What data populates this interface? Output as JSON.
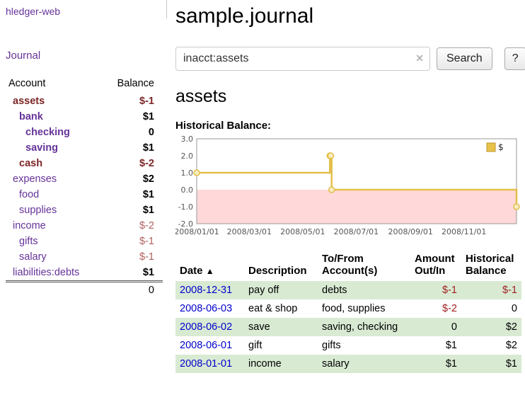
{
  "sidebar": {
    "app_title": "hledger-web",
    "nav": {
      "journal": "Journal"
    },
    "table": {
      "account_header": "Account",
      "balance_header": "Balance"
    },
    "accounts": [
      {
        "name": "assets",
        "depth": 1,
        "bold": true,
        "name_color": "#7d2626",
        "balance": "$-1",
        "balance_color": "#7d2626",
        "balance_bold": true
      },
      {
        "name": "bank",
        "depth": 2,
        "bold": true,
        "name_color": "#663399",
        "balance": "$1",
        "balance_color": "#000000",
        "balance_bold": true
      },
      {
        "name": "checking",
        "depth": 3,
        "bold": true,
        "name_color": "#663399",
        "balance": "0",
        "balance_color": "#000000",
        "balance_bold": true
      },
      {
        "name": "saving",
        "depth": 3,
        "bold": true,
        "name_color": "#663399",
        "balance": "$1",
        "balance_color": "#000000",
        "balance_bold": true
      },
      {
        "name": "cash",
        "depth": 2,
        "bold": true,
        "name_color": "#7d2626",
        "balance": "$-2",
        "balance_color": "#7d2626",
        "balance_bold": true
      },
      {
        "name": "expenses",
        "depth": 1,
        "bold": false,
        "name_color": "#663399",
        "balance": "$2",
        "balance_color": "#000000",
        "balance_bold": true
      },
      {
        "name": "food",
        "depth": 2,
        "bold": false,
        "name_color": "#663399",
        "balance": "$1",
        "balance_color": "#000000",
        "balance_bold": true
      },
      {
        "name": "supplies",
        "depth": 2,
        "bold": false,
        "name_color": "#663399",
        "balance": "$1",
        "balance_color": "#000000",
        "balance_bold": true
      },
      {
        "name": "income",
        "depth": 1,
        "bold": false,
        "name_color": "#663399",
        "balance": "$-2",
        "balance_color": "#b06060",
        "balance_bold": false
      },
      {
        "name": "gifts",
        "depth": 2,
        "bold": false,
        "name_color": "#663399",
        "balance": "$-1",
        "balance_color": "#b06060",
        "balance_bold": false
      },
      {
        "name": "salary",
        "depth": 2,
        "bold": false,
        "name_color": "#663399",
        "balance": "$-1",
        "balance_color": "#b06060",
        "balance_bold": false
      },
      {
        "name": "liabilities:debts",
        "depth": 1,
        "bold": false,
        "name_color": "#663399",
        "balance": "$1",
        "balance_color": "#000000",
        "balance_bold": true
      }
    ],
    "total": "0"
  },
  "header": {
    "title": "sample.journal"
  },
  "search": {
    "value": "inacct:assets",
    "clear_icon": "✕",
    "button": "Search",
    "help": "?"
  },
  "account_page": {
    "title": "assets",
    "chart_label": "Historical Balance:"
  },
  "chart_data": {
    "type": "line",
    "step": true,
    "title": "Historical Balance",
    "ylim": [
      -2,
      3
    ],
    "yticks": [
      {
        "label": "3.0",
        "value": 3
      },
      {
        "label": "2.0",
        "value": 2
      },
      {
        "label": "1.0",
        "value": 1
      },
      {
        "label": "0.0",
        "value": 0
      },
      {
        "label": "-1.0",
        "value": -1
      },
      {
        "label": "-2.0",
        "value": -2
      }
    ],
    "x_range_days": [
      1,
      366
    ],
    "xticks": [
      {
        "label": "2008/01/01",
        "day": 1
      },
      {
        "label": "2008/03/01",
        "day": 61
      },
      {
        "label": "2008/05/01",
        "day": 122
      },
      {
        "label": "2008/07/01",
        "day": 183
      },
      {
        "label": "2008/09/01",
        "day": 245
      },
      {
        "label": "2008/11/01",
        "day": 306
      }
    ],
    "series": [
      {
        "name": "$",
        "color": "#e3bf4b",
        "marker_fill": "#f8ecc2",
        "points": [
          {
            "date": "2008-01-01",
            "day": 1,
            "value": 1
          },
          {
            "date": "2008-06-01",
            "day": 153,
            "value": 2
          },
          {
            "date": "2008-06-02",
            "day": 154,
            "value": 2
          },
          {
            "date": "2008-06-03",
            "day": 155,
            "value": 0
          },
          {
            "date": "2008-12-31",
            "day": 366,
            "value": -1
          }
        ]
      }
    ],
    "negative_region_color": "#ffd9d9",
    "legend": {
      "label": "$",
      "color": "#e9c24a",
      "border": "#bb9430",
      "position": "top-right"
    }
  },
  "transactions": {
    "headers": {
      "date": "Date",
      "sort_icon": "▲",
      "description": "Description",
      "tofrom": "To/From Account(s)",
      "amount": "Amount Out/In",
      "balance": "Historical Balance"
    },
    "rows": [
      {
        "date": "2008-12-31",
        "description": "pay off",
        "accounts": "debts",
        "amount": "$-1",
        "amount_color": "#a02020",
        "balance": "$-1",
        "balance_color": "#a02020"
      },
      {
        "date": "2008-06-03",
        "description": "eat & shop",
        "accounts": "food, supplies",
        "amount": "$-2",
        "amount_color": "#a02020",
        "balance": "0",
        "balance_color": "#000000"
      },
      {
        "date": "2008-06-02",
        "description": "save",
        "accounts": "saving, checking",
        "amount": "0",
        "amount_color": "#000000",
        "balance": "$2",
        "balance_color": "#000000"
      },
      {
        "date": "2008-06-01",
        "description": "gift",
        "accounts": "gifts",
        "amount": "$1",
        "amount_color": "#000000",
        "balance": "$2",
        "balance_color": "#000000"
      },
      {
        "date": "2008-01-01",
        "description": "income",
        "accounts": "salary",
        "amount": "$1",
        "amount_color": "#000000",
        "balance": "$1",
        "balance_color": "#000000"
      }
    ]
  }
}
